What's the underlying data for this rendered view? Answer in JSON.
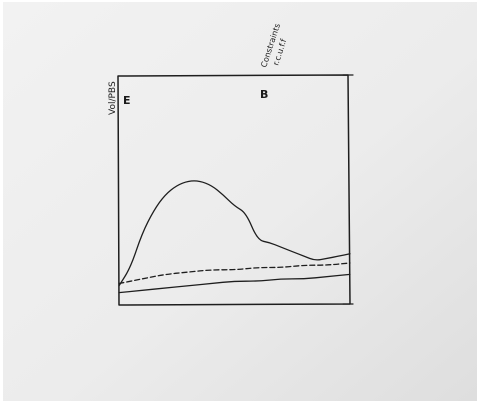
{
  "chart_data": {
    "type": "line",
    "title": "",
    "xlabel": "",
    "ylabel": "",
    "grid": false,
    "legend": "none",
    "annotations": {
      "y_axis_label": "Vol/PBS",
      "left_mark": "E",
      "center_mark": "B",
      "top_right_note_1": "Constraints",
      "top_right_note_2": "r.c.u.f.f"
    },
    "xlim": [
      0,
      100
    ],
    "ylim": [
      0,
      100
    ],
    "series": [
      {
        "style": "solid",
        "x": [
          0,
          5,
          10,
          15,
          20,
          25,
          30,
          35,
          40,
          45,
          50,
          55,
          60,
          65,
          70,
          75,
          80,
          85,
          90,
          95,
          100
        ],
        "values": [
          8,
          16,
          31,
          41,
          48,
          52,
          54,
          54,
          52,
          48,
          43,
          40,
          28,
          27,
          25,
          23,
          21,
          19,
          20,
          21,
          22
        ]
      },
      {
        "style": "dashed",
        "x": [
          0,
          10,
          20,
          30,
          40,
          50,
          60,
          70,
          80,
          90,
          100
        ],
        "values": [
          9,
          11,
          13,
          14,
          15,
          15,
          16,
          16,
          17,
          17,
          18
        ]
      },
      {
        "style": "solid",
        "x": [
          0,
          10,
          20,
          30,
          40,
          50,
          60,
          70,
          80,
          90,
          100
        ],
        "values": [
          5,
          6,
          7,
          8,
          9,
          10,
          10,
          11,
          11,
          12,
          13
        ]
      }
    ],
    "colors": {
      "ink": "#1e1e1e",
      "paper": "#ececec",
      "background": "#ffffff"
    }
  }
}
